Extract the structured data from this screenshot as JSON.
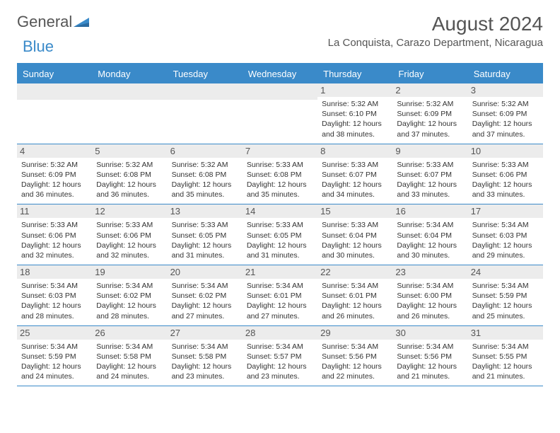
{
  "logo": {
    "text1": "General",
    "text2": "Blue"
  },
  "title": "August 2024",
  "location": "La Conquista, Carazo Department, Nicaragua",
  "day_headers": [
    "Sunday",
    "Monday",
    "Tuesday",
    "Wednesday",
    "Thursday",
    "Friday",
    "Saturday"
  ],
  "colors": {
    "accent": "#3a8ac9",
    "header_bg": "#ffffff",
    "daynum_bg": "#ececec",
    "text": "#333333",
    "title_text": "#555555"
  },
  "typography": {
    "month_title_fontsize": 28,
    "location_fontsize": 15,
    "dayheader_fontsize": 13,
    "daynum_fontsize": 13,
    "info_fontsize": 10.5
  },
  "weeks": [
    [
      {
        "day": "",
        "sunrise": "",
        "sunset": "",
        "daylight": ""
      },
      {
        "day": "",
        "sunrise": "",
        "sunset": "",
        "daylight": ""
      },
      {
        "day": "",
        "sunrise": "",
        "sunset": "",
        "daylight": ""
      },
      {
        "day": "",
        "sunrise": "",
        "sunset": "",
        "daylight": ""
      },
      {
        "day": "1",
        "sunrise": "Sunrise: 5:32 AM",
        "sunset": "Sunset: 6:10 PM",
        "daylight": "Daylight: 12 hours and 38 minutes."
      },
      {
        "day": "2",
        "sunrise": "Sunrise: 5:32 AM",
        "sunset": "Sunset: 6:09 PM",
        "daylight": "Daylight: 12 hours and 37 minutes."
      },
      {
        "day": "3",
        "sunrise": "Sunrise: 5:32 AM",
        "sunset": "Sunset: 6:09 PM",
        "daylight": "Daylight: 12 hours and 37 minutes."
      }
    ],
    [
      {
        "day": "4",
        "sunrise": "Sunrise: 5:32 AM",
        "sunset": "Sunset: 6:09 PM",
        "daylight": "Daylight: 12 hours and 36 minutes."
      },
      {
        "day": "5",
        "sunrise": "Sunrise: 5:32 AM",
        "sunset": "Sunset: 6:08 PM",
        "daylight": "Daylight: 12 hours and 36 minutes."
      },
      {
        "day": "6",
        "sunrise": "Sunrise: 5:32 AM",
        "sunset": "Sunset: 6:08 PM",
        "daylight": "Daylight: 12 hours and 35 minutes."
      },
      {
        "day": "7",
        "sunrise": "Sunrise: 5:33 AM",
        "sunset": "Sunset: 6:08 PM",
        "daylight": "Daylight: 12 hours and 35 minutes."
      },
      {
        "day": "8",
        "sunrise": "Sunrise: 5:33 AM",
        "sunset": "Sunset: 6:07 PM",
        "daylight": "Daylight: 12 hours and 34 minutes."
      },
      {
        "day": "9",
        "sunrise": "Sunrise: 5:33 AM",
        "sunset": "Sunset: 6:07 PM",
        "daylight": "Daylight: 12 hours and 33 minutes."
      },
      {
        "day": "10",
        "sunrise": "Sunrise: 5:33 AM",
        "sunset": "Sunset: 6:06 PM",
        "daylight": "Daylight: 12 hours and 33 minutes."
      }
    ],
    [
      {
        "day": "11",
        "sunrise": "Sunrise: 5:33 AM",
        "sunset": "Sunset: 6:06 PM",
        "daylight": "Daylight: 12 hours and 32 minutes."
      },
      {
        "day": "12",
        "sunrise": "Sunrise: 5:33 AM",
        "sunset": "Sunset: 6:06 PM",
        "daylight": "Daylight: 12 hours and 32 minutes."
      },
      {
        "day": "13",
        "sunrise": "Sunrise: 5:33 AM",
        "sunset": "Sunset: 6:05 PM",
        "daylight": "Daylight: 12 hours and 31 minutes."
      },
      {
        "day": "14",
        "sunrise": "Sunrise: 5:33 AM",
        "sunset": "Sunset: 6:05 PM",
        "daylight": "Daylight: 12 hours and 31 minutes."
      },
      {
        "day": "15",
        "sunrise": "Sunrise: 5:33 AM",
        "sunset": "Sunset: 6:04 PM",
        "daylight": "Daylight: 12 hours and 30 minutes."
      },
      {
        "day": "16",
        "sunrise": "Sunrise: 5:34 AM",
        "sunset": "Sunset: 6:04 PM",
        "daylight": "Daylight: 12 hours and 30 minutes."
      },
      {
        "day": "17",
        "sunrise": "Sunrise: 5:34 AM",
        "sunset": "Sunset: 6:03 PM",
        "daylight": "Daylight: 12 hours and 29 minutes."
      }
    ],
    [
      {
        "day": "18",
        "sunrise": "Sunrise: 5:34 AM",
        "sunset": "Sunset: 6:03 PM",
        "daylight": "Daylight: 12 hours and 28 minutes."
      },
      {
        "day": "19",
        "sunrise": "Sunrise: 5:34 AM",
        "sunset": "Sunset: 6:02 PM",
        "daylight": "Daylight: 12 hours and 28 minutes."
      },
      {
        "day": "20",
        "sunrise": "Sunrise: 5:34 AM",
        "sunset": "Sunset: 6:02 PM",
        "daylight": "Daylight: 12 hours and 27 minutes."
      },
      {
        "day": "21",
        "sunrise": "Sunrise: 5:34 AM",
        "sunset": "Sunset: 6:01 PM",
        "daylight": "Daylight: 12 hours and 27 minutes."
      },
      {
        "day": "22",
        "sunrise": "Sunrise: 5:34 AM",
        "sunset": "Sunset: 6:01 PM",
        "daylight": "Daylight: 12 hours and 26 minutes."
      },
      {
        "day": "23",
        "sunrise": "Sunrise: 5:34 AM",
        "sunset": "Sunset: 6:00 PM",
        "daylight": "Daylight: 12 hours and 26 minutes."
      },
      {
        "day": "24",
        "sunrise": "Sunrise: 5:34 AM",
        "sunset": "Sunset: 5:59 PM",
        "daylight": "Daylight: 12 hours and 25 minutes."
      }
    ],
    [
      {
        "day": "25",
        "sunrise": "Sunrise: 5:34 AM",
        "sunset": "Sunset: 5:59 PM",
        "daylight": "Daylight: 12 hours and 24 minutes."
      },
      {
        "day": "26",
        "sunrise": "Sunrise: 5:34 AM",
        "sunset": "Sunset: 5:58 PM",
        "daylight": "Daylight: 12 hours and 24 minutes."
      },
      {
        "day": "27",
        "sunrise": "Sunrise: 5:34 AM",
        "sunset": "Sunset: 5:58 PM",
        "daylight": "Daylight: 12 hours and 23 minutes."
      },
      {
        "day": "28",
        "sunrise": "Sunrise: 5:34 AM",
        "sunset": "Sunset: 5:57 PM",
        "daylight": "Daylight: 12 hours and 23 minutes."
      },
      {
        "day": "29",
        "sunrise": "Sunrise: 5:34 AM",
        "sunset": "Sunset: 5:56 PM",
        "daylight": "Daylight: 12 hours and 22 minutes."
      },
      {
        "day": "30",
        "sunrise": "Sunrise: 5:34 AM",
        "sunset": "Sunset: 5:56 PM",
        "daylight": "Daylight: 12 hours and 21 minutes."
      },
      {
        "day": "31",
        "sunrise": "Sunrise: 5:34 AM",
        "sunset": "Sunset: 5:55 PM",
        "daylight": "Daylight: 12 hours and 21 minutes."
      }
    ]
  ]
}
